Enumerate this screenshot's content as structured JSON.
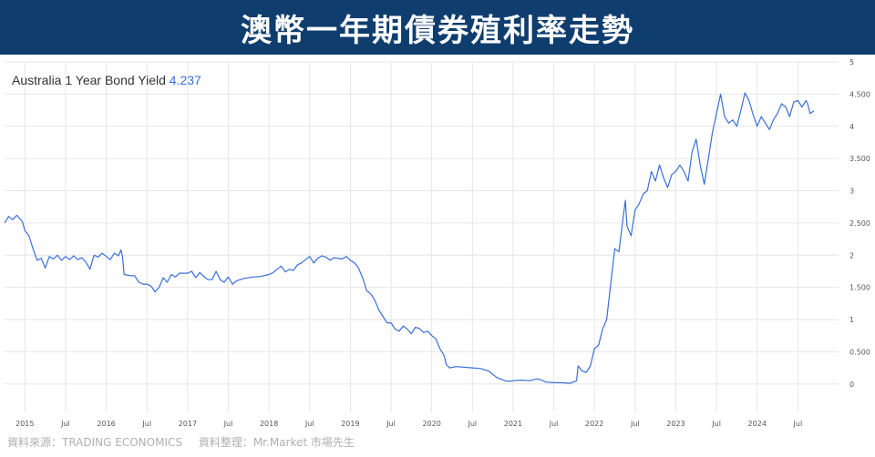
{
  "banner": {
    "title": "澳幣一年期債券殖利率走勢"
  },
  "footer": {
    "source_left": "資料來源：TRADING ECONOMICS",
    "source_right": "資料整理：Mr.Market 市場先生"
  },
  "chart_data": {
    "type": "line",
    "title": "Australia 1 Year Bond Yield",
    "title_value": "4.237",
    "source_note": "source: tradingeconomics.com",
    "colors": {
      "line": "#3a6fd8",
      "title_value": "#3a6fd8",
      "grid": "#e6e6e6"
    },
    "grid": true,
    "ylim": [
      -0.3,
      5
    ],
    "yticks": [
      {
        "v": 5,
        "label": "5"
      },
      {
        "v": 4.5,
        "label": "4.500"
      },
      {
        "v": 4,
        "label": "4"
      },
      {
        "v": 3.5,
        "label": "3.500"
      },
      {
        "v": 3,
        "label": "3"
      },
      {
        "v": 2.5,
        "label": "2.500"
      },
      {
        "v": 2,
        "label": "2"
      },
      {
        "v": 1.5,
        "label": "1.500"
      },
      {
        "v": 1,
        "label": "1"
      },
      {
        "v": 0.5,
        "label": "0.500"
      },
      {
        "v": 0,
        "label": "0"
      }
    ],
    "xlim": [
      2014.75,
      2025.0
    ],
    "xticks": [
      {
        "v": 2015.0,
        "label": "2015"
      },
      {
        "v": 2015.5,
        "label": "Jul"
      },
      {
        "v": 2016.0,
        "label": "2016"
      },
      {
        "v": 2016.5,
        "label": "Jul"
      },
      {
        "v": 2017.0,
        "label": "2017"
      },
      {
        "v": 2017.5,
        "label": "Jul"
      },
      {
        "v": 2018.0,
        "label": "2018"
      },
      {
        "v": 2018.5,
        "label": "Jul"
      },
      {
        "v": 2019.0,
        "label": "2019"
      },
      {
        "v": 2019.5,
        "label": "Jul"
      },
      {
        "v": 2020.0,
        "label": "2020"
      },
      {
        "v": 2020.5,
        "label": "Jul"
      },
      {
        "v": 2021.0,
        "label": "2021"
      },
      {
        "v": 2021.5,
        "label": "Jul"
      },
      {
        "v": 2022.0,
        "label": "2022"
      },
      {
        "v": 2022.5,
        "label": "Jul"
      },
      {
        "v": 2023.0,
        "label": "2023"
      },
      {
        "v": 2023.5,
        "label": "Jul"
      },
      {
        "v": 2024.0,
        "label": "2024"
      },
      {
        "v": 2024.5,
        "label": "Jul"
      }
    ],
    "series": [
      {
        "points": [
          [
            2014.75,
            2.5
          ],
          [
            2014.8,
            2.6
          ],
          [
            2014.85,
            2.55
          ],
          [
            2014.9,
            2.62
          ],
          [
            2014.97,
            2.52
          ],
          [
            2015.0,
            2.38
          ],
          [
            2015.05,
            2.3
          ],
          [
            2015.1,
            2.1
          ],
          [
            2015.15,
            1.92
          ],
          [
            2015.2,
            1.95
          ],
          [
            2015.25,
            1.8
          ],
          [
            2015.3,
            1.98
          ],
          [
            2015.35,
            1.94
          ],
          [
            2015.4,
            2.0
          ],
          [
            2015.45,
            1.92
          ],
          [
            2015.5,
            1.98
          ],
          [
            2015.55,
            1.93
          ],
          [
            2015.6,
            1.99
          ],
          [
            2015.65,
            1.93
          ],
          [
            2015.7,
            1.96
          ],
          [
            2015.75,
            1.89
          ],
          [
            2015.8,
            1.78
          ],
          [
            2015.85,
            2.0
          ],
          [
            2015.9,
            1.97
          ],
          [
            2015.95,
            2.03
          ],
          [
            2016.0,
            1.98
          ],
          [
            2016.05,
            1.93
          ],
          [
            2016.1,
            2.03
          ],
          [
            2016.15,
            1.99
          ],
          [
            2016.18,
            2.08
          ],
          [
            2016.2,
            1.98
          ],
          [
            2016.22,
            1.7
          ],
          [
            2016.3,
            1.68
          ],
          [
            2016.35,
            1.68
          ],
          [
            2016.4,
            1.58
          ],
          [
            2016.45,
            1.55
          ],
          [
            2016.5,
            1.55
          ],
          [
            2016.55,
            1.52
          ],
          [
            2016.6,
            1.43
          ],
          [
            2016.65,
            1.5
          ],
          [
            2016.7,
            1.65
          ],
          [
            2016.75,
            1.58
          ],
          [
            2016.8,
            1.7
          ],
          [
            2016.85,
            1.66
          ],
          [
            2016.9,
            1.72
          ],
          [
            2017.0,
            1.72
          ],
          [
            2017.05,
            1.75
          ],
          [
            2017.1,
            1.65
          ],
          [
            2017.15,
            1.73
          ],
          [
            2017.2,
            1.67
          ],
          [
            2017.25,
            1.62
          ],
          [
            2017.3,
            1.62
          ],
          [
            2017.35,
            1.75
          ],
          [
            2017.4,
            1.62
          ],
          [
            2017.45,
            1.58
          ],
          [
            2017.5,
            1.66
          ],
          [
            2017.55,
            1.55
          ],
          [
            2017.6,
            1.6
          ],
          [
            2017.7,
            1.64
          ],
          [
            2017.8,
            1.66
          ],
          [
            2017.9,
            1.67
          ],
          [
            2018.0,
            1.7
          ],
          [
            2018.05,
            1.73
          ],
          [
            2018.1,
            1.78
          ],
          [
            2018.15,
            1.83
          ],
          [
            2018.2,
            1.74
          ],
          [
            2018.25,
            1.78
          ],
          [
            2018.3,
            1.76
          ],
          [
            2018.35,
            1.85
          ],
          [
            2018.4,
            1.88
          ],
          [
            2018.45,
            1.93
          ],
          [
            2018.5,
            1.98
          ],
          [
            2018.55,
            1.88
          ],
          [
            2018.6,
            1.95
          ],
          [
            2018.65,
            1.99
          ],
          [
            2018.7,
            1.97
          ],
          [
            2018.75,
            1.92
          ],
          [
            2018.8,
            1.96
          ],
          [
            2018.9,
            1.94
          ],
          [
            2018.95,
            1.98
          ],
          [
            2019.0,
            1.92
          ],
          [
            2019.05,
            1.88
          ],
          [
            2019.1,
            1.8
          ],
          [
            2019.15,
            1.65
          ],
          [
            2019.2,
            1.45
          ],
          [
            2019.25,
            1.4
          ],
          [
            2019.3,
            1.3
          ],
          [
            2019.35,
            1.15
          ],
          [
            2019.4,
            1.05
          ],
          [
            2019.45,
            0.95
          ],
          [
            2019.5,
            0.95
          ],
          [
            2019.55,
            0.85
          ],
          [
            2019.6,
            0.82
          ],
          [
            2019.65,
            0.9
          ],
          [
            2019.7,
            0.85
          ],
          [
            2019.75,
            0.78
          ],
          [
            2019.8,
            0.88
          ],
          [
            2019.85,
            0.86
          ],
          [
            2019.9,
            0.8
          ],
          [
            2019.95,
            0.82
          ],
          [
            2020.0,
            0.75
          ],
          [
            2020.05,
            0.7
          ],
          [
            2020.1,
            0.55
          ],
          [
            2020.15,
            0.45
          ],
          [
            2020.18,
            0.3
          ],
          [
            2020.22,
            0.25
          ],
          [
            2020.3,
            0.27
          ],
          [
            2020.4,
            0.26
          ],
          [
            2020.5,
            0.25
          ],
          [
            2020.6,
            0.24
          ],
          [
            2020.7,
            0.2
          ],
          [
            2020.8,
            0.1
          ],
          [
            2020.9,
            0.05
          ],
          [
            2020.95,
            0.04
          ],
          [
            2021.0,
            0.05
          ],
          [
            2021.1,
            0.06
          ],
          [
            2021.2,
            0.05
          ],
          [
            2021.3,
            0.08
          ],
          [
            2021.35,
            0.06
          ],
          [
            2021.4,
            0.03
          ],
          [
            2021.5,
            0.02
          ],
          [
            2021.6,
            0.02
          ],
          [
            2021.7,
            0.01
          ],
          [
            2021.78,
            0.05
          ],
          [
            2021.8,
            0.28
          ],
          [
            2021.85,
            0.2
          ],
          [
            2021.9,
            0.18
          ],
          [
            2021.95,
            0.28
          ],
          [
            2022.0,
            0.55
          ],
          [
            2022.05,
            0.6
          ],
          [
            2022.1,
            0.85
          ],
          [
            2022.15,
            1.0
          ],
          [
            2022.2,
            1.55
          ],
          [
            2022.25,
            2.1
          ],
          [
            2022.3,
            2.05
          ],
          [
            2022.35,
            2.55
          ],
          [
            2022.38,
            2.85
          ],
          [
            2022.4,
            2.45
          ],
          [
            2022.45,
            2.3
          ],
          [
            2022.5,
            2.7
          ],
          [
            2022.55,
            2.8
          ],
          [
            2022.6,
            2.95
          ],
          [
            2022.65,
            3.0
          ],
          [
            2022.7,
            3.3
          ],
          [
            2022.75,
            3.15
          ],
          [
            2022.8,
            3.4
          ],
          [
            2022.85,
            3.2
          ],
          [
            2022.9,
            3.05
          ],
          [
            2022.95,
            3.25
          ],
          [
            2023.0,
            3.3
          ],
          [
            2023.05,
            3.4
          ],
          [
            2023.1,
            3.3
          ],
          [
            2023.15,
            3.15
          ],
          [
            2023.2,
            3.6
          ],
          [
            2023.25,
            3.8
          ],
          [
            2023.3,
            3.4
          ],
          [
            2023.35,
            3.1
          ],
          [
            2023.4,
            3.5
          ],
          [
            2023.45,
            3.9
          ],
          [
            2023.5,
            4.2
          ],
          [
            2023.55,
            4.5
          ],
          [
            2023.6,
            4.15
          ],
          [
            2023.65,
            4.05
          ],
          [
            2023.7,
            4.1
          ],
          [
            2023.75,
            4.0
          ],
          [
            2023.8,
            4.25
          ],
          [
            2023.85,
            4.52
          ],
          [
            2023.9,
            4.4
          ],
          [
            2023.95,
            4.18
          ],
          [
            2024.0,
            4.0
          ],
          [
            2024.05,
            4.15
          ],
          [
            2024.1,
            4.05
          ],
          [
            2024.15,
            3.95
          ],
          [
            2024.2,
            4.1
          ],
          [
            2024.25,
            4.2
          ],
          [
            2024.3,
            4.35
          ],
          [
            2024.35,
            4.3
          ],
          [
            2024.4,
            4.15
          ],
          [
            2024.45,
            4.38
          ],
          [
            2024.5,
            4.4
          ],
          [
            2024.55,
            4.3
          ],
          [
            2024.6,
            4.4
          ],
          [
            2024.62,
            4.35
          ],
          [
            2024.65,
            4.2
          ],
          [
            2024.7,
            4.24
          ]
        ]
      }
    ]
  }
}
